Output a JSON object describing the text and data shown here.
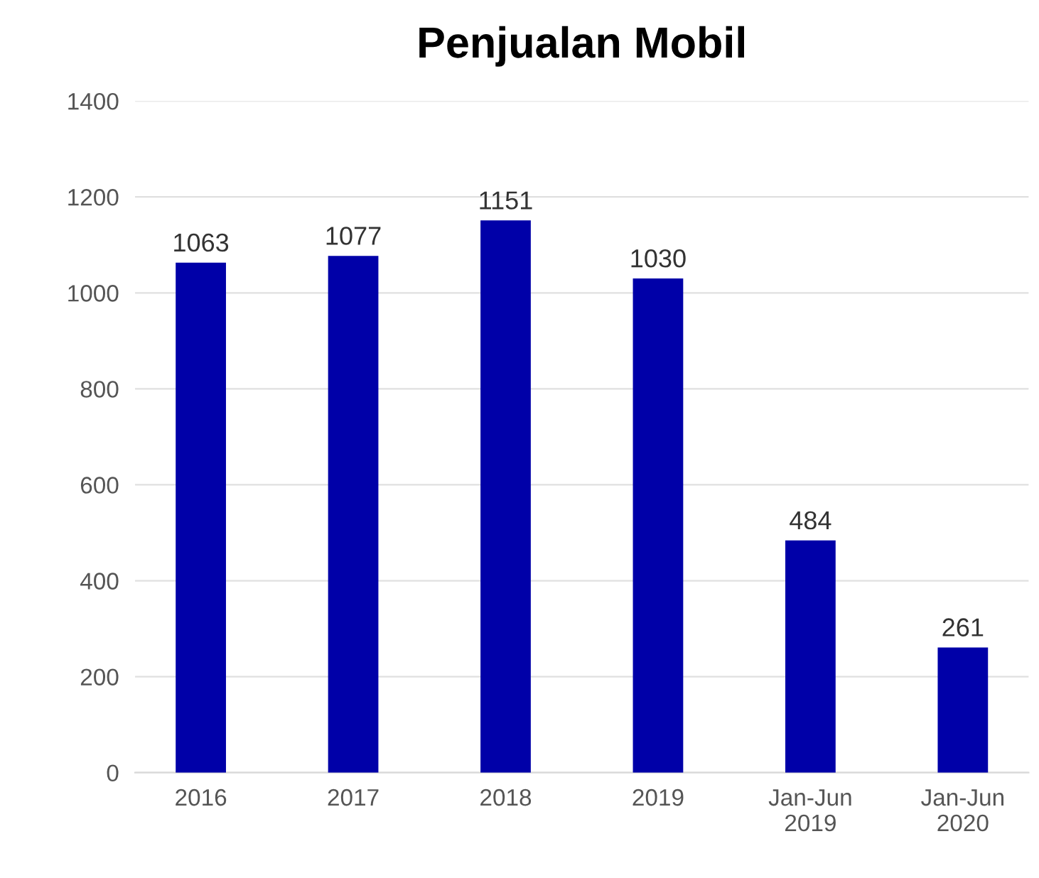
{
  "chart_data": {
    "type": "bar",
    "title": "Penjualan Mobil",
    "categories": [
      "2016",
      "2017",
      "2018",
      "2019",
      "Jan-Jun\n2019",
      "Jan-Jun\n2020"
    ],
    "values": [
      1063,
      1077,
      1151,
      1030,
      484,
      261
    ],
    "color": "#0000a8",
    "ylim": [
      0,
      1400
    ],
    "yticks": [
      0,
      200,
      400,
      600,
      800,
      1000,
      1200,
      1400
    ],
    "grid": "y",
    "data_labels": true
  }
}
